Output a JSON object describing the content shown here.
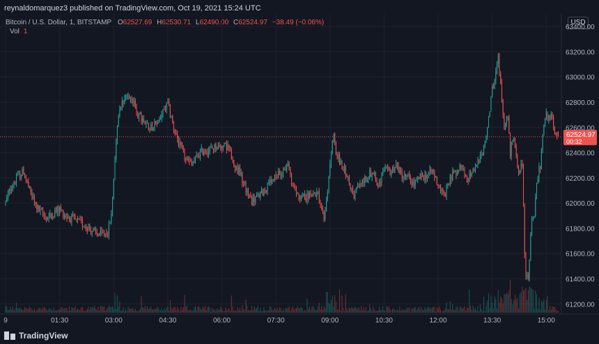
{
  "header": {
    "publisher_line": "reynaldomarquez3 published on TradingView.com, Oct 19, 2021 15:24 UTC",
    "currency": "USD"
  },
  "legend": {
    "symbol": "Bitcoin / U.S. Dollar, 1, BITSTAMP",
    "open_label": "O",
    "open": "62527.69",
    "high_label": "H",
    "high": "62530.71",
    "low_label": "L",
    "low": "62490.00",
    "close_label": "C",
    "close": "62524.97",
    "change": "−38.49 (−0.06%)",
    "vol_label": "Vol",
    "vol": "1"
  },
  "price_badge": {
    "price": "62524.97",
    "countdown": "00:32"
  },
  "footer": {
    "brand": "TradingView"
  },
  "colors": {
    "background": "#131722",
    "up": "#26a69a",
    "down": "#ef5350",
    "price_line": "#ef5350",
    "grid": "#1e222d",
    "axis_text": "#b2b5be"
  },
  "chart_data": {
    "type": "candlestick",
    "title": "Bitcoin / U.S. Dollar, 1, BITSTAMP",
    "interval": "1 minute",
    "last_price": 62524.97,
    "y_ticks": [
      63400,
      63200,
      63000,
      62800,
      62600,
      62400,
      62200,
      62000,
      61800,
      61600,
      61400,
      61200
    ],
    "y_tick_labels": [
      "63400.00",
      "63200.00",
      "63000.00",
      "62800.00",
      "62600.00",
      "62400.00",
      "62200.00",
      "62000.00",
      "61800.00",
      "61600.00",
      "61400.00",
      "61200.00"
    ],
    "ylim": [
      61130,
      63500
    ],
    "x_ticks": [
      "9",
      "01:30",
      "03:00",
      "04:30",
      "06:00",
      "07:30",
      "09:00",
      "10:30",
      "12:00",
      "13:30",
      "15:00"
    ],
    "x_tick_minutes": [
      0,
      90,
      180,
      270,
      360,
      450,
      540,
      630,
      720,
      810,
      900
    ],
    "xlim_minutes": [
      0,
      924
    ],
    "grid": true,
    "price_path_minutes": [
      0,
      10,
      20,
      30,
      40,
      50,
      60,
      70,
      80,
      90,
      100,
      110,
      120,
      130,
      140,
      150,
      160,
      170,
      175,
      180,
      185,
      190,
      200,
      210,
      220,
      230,
      240,
      250,
      260,
      270,
      280,
      290,
      300,
      310,
      320,
      330,
      340,
      350,
      360,
      370,
      380,
      390,
      400,
      410,
      420,
      430,
      440,
      450,
      460,
      470,
      480,
      490,
      500,
      510,
      520,
      530,
      540,
      545,
      550,
      560,
      570,
      580,
      590,
      600,
      610,
      620,
      630,
      640,
      650,
      660,
      670,
      680,
      690,
      700,
      710,
      720,
      730,
      740,
      750,
      760,
      770,
      780,
      790,
      800,
      810,
      815,
      820,
      825,
      830,
      835,
      840,
      845,
      850,
      855,
      860,
      865,
      870,
      875,
      880,
      885,
      890,
      895,
      900,
      905,
      910,
      915,
      920
    ],
    "price_path": [
      62000,
      62150,
      62200,
      62250,
      62100,
      61980,
      61920,
      61880,
      61920,
      61950,
      61900,
      61880,
      61850,
      61830,
      61800,
      61760,
      61750,
      61770,
      61850,
      62200,
      62600,
      62780,
      62850,
      62830,
      62700,
      62650,
      62600,
      62620,
      62700,
      62780,
      62600,
      62450,
      62350,
      62300,
      62380,
      62420,
      62420,
      62450,
      62450,
      62450,
      62300,
      62250,
      62100,
      62020,
      62050,
      62100,
      62150,
      62200,
      62250,
      62300,
      62100,
      62050,
      62050,
      62080,
      62080,
      61850,
      62300,
      62550,
      62400,
      62300,
      62200,
      62050,
      62150,
      62200,
      62250,
      62150,
      62250,
      62250,
      62300,
      62220,
      62200,
      62150,
      62200,
      62220,
      62250,
      62150,
      62050,
      62200,
      62250,
      62300,
      62200,
      62250,
      62350,
      62500,
      62900,
      63000,
      63150,
      62900,
      62550,
      62750,
      62400,
      62550,
      62350,
      62250,
      62300,
      61450,
      61400,
      61850,
      61900,
      62200,
      62300,
      62600,
      62700,
      62650,
      62700,
      62550,
      62520
    ],
    "volume_max_label_ref": "Vol"
  }
}
